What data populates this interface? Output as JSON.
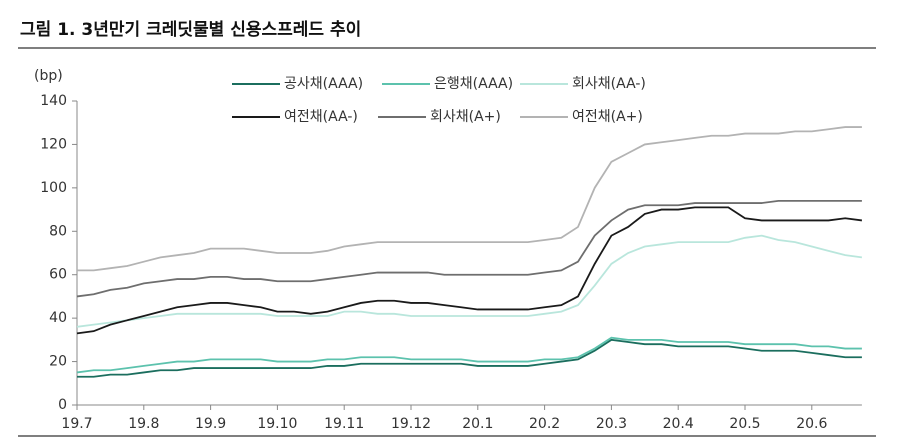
{
  "chart_data": {
    "type": "line",
    "title": "그림 1. 3년만기 크레딧물별 신용스프레드 추이",
    "y_label": "(bp)",
    "categories": [
      "19.7",
      null,
      null,
      null,
      "19.8",
      null,
      null,
      null,
      "19.9",
      null,
      null,
      null,
      "19.10",
      null,
      null,
      null,
      "19.11",
      null,
      null,
      null,
      "19.12",
      null,
      null,
      null,
      "20.1",
      null,
      null,
      null,
      "20.2",
      null,
      null,
      null,
      "20.3",
      null,
      null,
      null,
      "20.4",
      null,
      null,
      null,
      "20.5",
      null,
      null,
      null,
      "20.6",
      null,
      null,
      null
    ],
    "series": [
      {
        "name": "공사채(AAA)",
        "color": "#1b6e5e",
        "values": [
          13,
          13,
          14,
          14,
          15,
          16,
          16,
          17,
          17,
          17,
          17,
          17,
          17,
          17,
          17,
          18,
          18,
          19,
          19,
          19,
          19,
          19,
          19,
          19,
          18,
          18,
          18,
          18,
          19,
          20,
          21,
          25,
          30,
          29,
          28,
          28,
          27,
          27,
          27,
          27,
          26,
          25,
          25,
          25,
          24,
          23,
          22,
          22
        ]
      },
      {
        "name": "은행채(AAA)",
        "color": "#5cc2ad",
        "values": [
          15,
          16,
          16,
          17,
          18,
          19,
          20,
          20,
          21,
          21,
          21,
          21,
          20,
          20,
          20,
          21,
          21,
          22,
          22,
          22,
          21,
          21,
          21,
          21,
          20,
          20,
          20,
          20,
          21,
          21,
          22,
          26,
          31,
          30,
          30,
          30,
          29,
          29,
          29,
          29,
          28,
          28,
          28,
          28,
          27,
          27,
          26,
          26
        ]
      },
      {
        "name": "회사채(AA-)",
        "color": "#b9e6dc",
        "values": [
          36,
          37,
          38,
          39,
          40,
          41,
          42,
          42,
          42,
          42,
          42,
          42,
          41,
          41,
          41,
          41,
          43,
          43,
          42,
          42,
          41,
          41,
          41,
          41,
          41,
          41,
          41,
          41,
          42,
          43,
          46,
          55,
          65,
          70,
          73,
          74,
          75,
          75,
          75,
          75,
          77,
          78,
          76,
          75,
          73,
          71,
          69,
          68
        ]
      },
      {
        "name": "여전채(AA-)",
        "color": "#1a1a1a",
        "values": [
          33,
          34,
          37,
          39,
          41,
          43,
          45,
          46,
          47,
          47,
          46,
          45,
          43,
          43,
          42,
          43,
          45,
          47,
          48,
          48,
          47,
          47,
          46,
          45,
          44,
          44,
          44,
          44,
          45,
          46,
          50,
          65,
          78,
          82,
          88,
          90,
          90,
          91,
          91,
          91,
          86,
          85,
          85,
          85,
          85,
          85,
          86,
          85
        ]
      },
      {
        "name": "회사채(A+)",
        "color": "#6e6e6e",
        "values": [
          50,
          51,
          53,
          54,
          56,
          57,
          58,
          58,
          59,
          59,
          58,
          58,
          57,
          57,
          57,
          58,
          59,
          60,
          61,
          61,
          61,
          61,
          60,
          60,
          60,
          60,
          60,
          60,
          61,
          62,
          66,
          78,
          85,
          90,
          92,
          92,
          92,
          93,
          93,
          93,
          93,
          93,
          94,
          94,
          94,
          94,
          94,
          94
        ]
      },
      {
        "name": "여전채(A+)",
        "color": "#b3b3b3",
        "values": [
          62,
          62,
          63,
          64,
          66,
          68,
          69,
          70,
          72,
          72,
          72,
          71,
          70,
          70,
          70,
          71,
          73,
          74,
          75,
          75,
          75,
          75,
          75,
          75,
          75,
          75,
          75,
          75,
          76,
          77,
          82,
          100,
          112,
          116,
          120,
          121,
          122,
          123,
          124,
          124,
          125,
          125,
          125,
          126,
          126,
          127,
          128,
          128
        ]
      }
    ],
    "ylim": [
      0,
      140
    ],
    "yticks": [
      0,
      20,
      40,
      60,
      80,
      100,
      120,
      140
    ],
    "grid": false,
    "legend": "top"
  }
}
